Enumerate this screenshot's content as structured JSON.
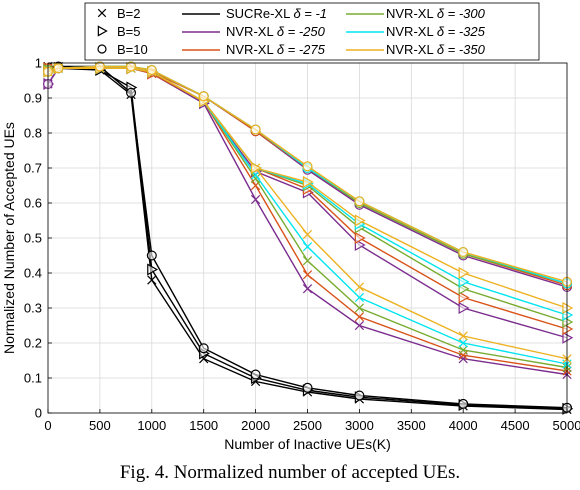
{
  "caption": "Fig. 4.  Normalized number of accepted UEs.",
  "chart_data": {
    "type": "line",
    "xlabel": "Number of Inactive UEs(K)",
    "ylabel": "Normalized Number of Accepted UEs",
    "xlim": [
      0,
      5000
    ],
    "ylim": [
      0,
      1
    ],
    "xticks": [
      "0",
      "500",
      "1000",
      "1500",
      "2000",
      "2500",
      "3000",
      "3500",
      "4000",
      "4500",
      "5000"
    ],
    "yticks": [
      "0",
      "0.1",
      "0.2",
      "0.3",
      "0.4",
      "0.5",
      "0.6",
      "0.7",
      "0.8",
      "0.9",
      "1"
    ],
    "grid": true,
    "legend_position": "top",
    "x": [
      0,
      100,
      500,
      800,
      1000,
      1500,
      2000,
      2500,
      3000,
      4000,
      5000
    ],
    "marker_legend": [
      {
        "marker": "x",
        "label": "B=2"
      },
      {
        "marker": "triangle-right",
        "label": "B=5"
      },
      {
        "marker": "circle",
        "label": "B=10"
      }
    ],
    "line_legend": [
      {
        "label": "SUCRe-XL",
        "delta": "δ = -1",
        "color": "#000000"
      },
      {
        "label": "NVR-XL",
        "delta": "δ = -250",
        "color": "#7b2d8e"
      },
      {
        "label": "NVR-XL",
        "delta": "δ = -275",
        "color": "#d95319"
      },
      {
        "label": "NVR-XL",
        "delta": "δ = -300",
        "color": "#77ac30"
      },
      {
        "label": "NVR-XL",
        "delta": "δ = -325",
        "color": "#00e5ee"
      },
      {
        "label": "NVR-XL",
        "delta": "δ = -350",
        "color": "#edb120"
      }
    ],
    "series": [
      {
        "legend_index": 0,
        "marker": "x",
        "values": [
          0.99,
          0.99,
          0.98,
          0.91,
          0.38,
          0.155,
          0.09,
          0.06,
          0.04,
          0.02,
          0.01
        ]
      },
      {
        "legend_index": 0,
        "marker": "triangle-right",
        "values": [
          0.985,
          0.985,
          0.98,
          0.93,
          0.41,
          0.17,
          0.1,
          0.065,
          0.045,
          0.023,
          0.012
        ]
      },
      {
        "legend_index": 0,
        "marker": "circle",
        "values": [
          0.985,
          0.99,
          0.99,
          0.915,
          0.45,
          0.185,
          0.11,
          0.072,
          0.05,
          0.026,
          0.015
        ]
      },
      {
        "legend_index": 1,
        "marker": "x",
        "values": [
          0.94,
          0.985,
          0.985,
          0.985,
          0.97,
          0.885,
          0.61,
          0.355,
          0.25,
          0.155,
          0.11
        ]
      },
      {
        "legend_index": 1,
        "marker": "triangle-right",
        "values": [
          0.94,
          0.985,
          0.985,
          0.985,
          0.97,
          0.885,
          0.69,
          0.63,
          0.48,
          0.3,
          0.215
        ]
      },
      {
        "legend_index": 1,
        "marker": "circle",
        "values": [
          0.94,
          0.985,
          0.99,
          0.99,
          0.975,
          0.905,
          0.805,
          0.695,
          0.595,
          0.45,
          0.36
        ]
      },
      {
        "legend_index": 2,
        "marker": "x",
        "values": [
          0.985,
          0.985,
          0.985,
          0.985,
          0.97,
          0.89,
          0.65,
          0.395,
          0.275,
          0.165,
          0.12
        ]
      },
      {
        "legend_index": 2,
        "marker": "triangle-right",
        "values": [
          0.985,
          0.985,
          0.985,
          0.985,
          0.97,
          0.89,
          0.7,
          0.64,
          0.5,
          0.33,
          0.24
        ]
      },
      {
        "legend_index": 2,
        "marker": "circle",
        "values": [
          0.985,
          0.985,
          0.99,
          0.99,
          0.975,
          0.905,
          0.805,
          0.7,
          0.6,
          0.455,
          0.365
        ]
      },
      {
        "legend_index": 3,
        "marker": "x",
        "values": [
          0.98,
          0.985,
          0.985,
          0.985,
          0.975,
          0.89,
          0.67,
          0.435,
          0.3,
          0.18,
          0.13
        ]
      },
      {
        "legend_index": 3,
        "marker": "triangle-right",
        "values": [
          0.98,
          0.985,
          0.985,
          0.985,
          0.975,
          0.89,
          0.7,
          0.65,
          0.53,
          0.355,
          0.26
        ]
      },
      {
        "legend_index": 3,
        "marker": "circle",
        "values": [
          0.98,
          0.985,
          0.99,
          0.99,
          0.98,
          0.905,
          0.81,
          0.7,
          0.6,
          0.455,
          0.37
        ]
      },
      {
        "legend_index": 4,
        "marker": "x",
        "values": [
          0.975,
          0.985,
          0.985,
          0.985,
          0.975,
          0.89,
          0.68,
          0.475,
          0.33,
          0.2,
          0.14
        ]
      },
      {
        "legend_index": 4,
        "marker": "triangle-right",
        "values": [
          0.975,
          0.985,
          0.985,
          0.985,
          0.975,
          0.89,
          0.7,
          0.655,
          0.54,
          0.375,
          0.28
        ]
      },
      {
        "legend_index": 4,
        "marker": "circle",
        "values": [
          0.975,
          0.985,
          0.99,
          0.99,
          0.98,
          0.905,
          0.81,
          0.7,
          0.605,
          0.46,
          0.37
        ]
      },
      {
        "legend_index": 5,
        "marker": "x",
        "values": [
          0.975,
          0.985,
          0.985,
          0.985,
          0.975,
          0.89,
          0.7,
          0.51,
          0.36,
          0.22,
          0.155
        ]
      },
      {
        "legend_index": 5,
        "marker": "triangle-right",
        "values": [
          0.975,
          0.985,
          0.985,
          0.985,
          0.975,
          0.89,
          0.7,
          0.66,
          0.55,
          0.4,
          0.3
        ]
      },
      {
        "legend_index": 5,
        "marker": "circle",
        "values": [
          0.975,
          0.985,
          0.99,
          0.99,
          0.98,
          0.905,
          0.81,
          0.705,
          0.605,
          0.46,
          0.375
        ]
      }
    ]
  }
}
